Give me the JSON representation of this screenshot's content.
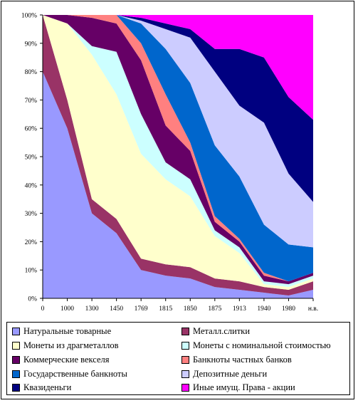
{
  "chart_data": {
    "type": "area",
    "stacked": "percent",
    "categories": [
      "0",
      "1000",
      "1300",
      "1450",
      "1769",
      "1815",
      "1850",
      "1875",
      "1913",
      "1940",
      "1980",
      "н.в."
    ],
    "y_ticks": [
      "0%",
      "10%",
      "20%",
      "30%",
      "40%",
      "50%",
      "60%",
      "70%",
      "80%",
      "90%",
      "100%"
    ],
    "ylim": [
      0,
      100
    ],
    "grid": false,
    "legend_position": "bottom",
    "series": [
      {
        "name": "Натуральные товарные",
        "color": "#9999ff",
        "values": [
          80,
          60,
          30,
          23,
          10,
          8,
          7,
          4,
          3,
          2,
          1,
          3
        ]
      },
      {
        "name": "Металл.слитки",
        "color": "#993366",
        "values": [
          20,
          10,
          5,
          5,
          4,
          4,
          4,
          3,
          3,
          2,
          2,
          3
        ]
      },
      {
        "name": "Монеты из драгметаллов",
        "color": "#ffffcc",
        "values": [
          0,
          27,
          51,
          44,
          37,
          30,
          25,
          15,
          10,
          1,
          1,
          1
        ]
      },
      {
        "name": "Монеты с номинальной стоимостью",
        "color": "#ccffff",
        "values": [
          0,
          0,
          3,
          15,
          14,
          6,
          6,
          2,
          2,
          1,
          1,
          1
        ]
      },
      {
        "name": "Коммерческие векселя",
        "color": "#660066",
        "values": [
          0,
          3,
          10,
          10,
          19,
          13,
          10,
          3,
          2,
          2,
          1,
          1
        ]
      },
      {
        "name": "Банкноты частных банков",
        "color": "#ff8080",
        "values": [
          0,
          0,
          1,
          3,
          6,
          11,
          3,
          2,
          1,
          1,
          0,
          0
        ]
      },
      {
        "name": "Государственные банкноты",
        "color": "#0066cc",
        "values": [
          0,
          0,
          0,
          0,
          7,
          16,
          21,
          25,
          22,
          17,
          13,
          9
        ]
      },
      {
        "name": "Депозитные деньги",
        "color": "#ccccff",
        "values": [
          0,
          0,
          0,
          0,
          1,
          7,
          16,
          26,
          25,
          36,
          25,
          16
        ]
      },
      {
        "name": "Квазиденьги",
        "color": "#000080",
        "values": [
          0,
          0,
          0,
          0,
          1,
          2,
          3,
          8,
          20,
          23,
          27,
          29
        ]
      },
      {
        "name": "Иные имущ. Права - акции",
        "color": "#ff00ff",
        "values": [
          0,
          0,
          0,
          0,
          1,
          3,
          5,
          12,
          12,
          15,
          29,
          37
        ]
      }
    ]
  }
}
